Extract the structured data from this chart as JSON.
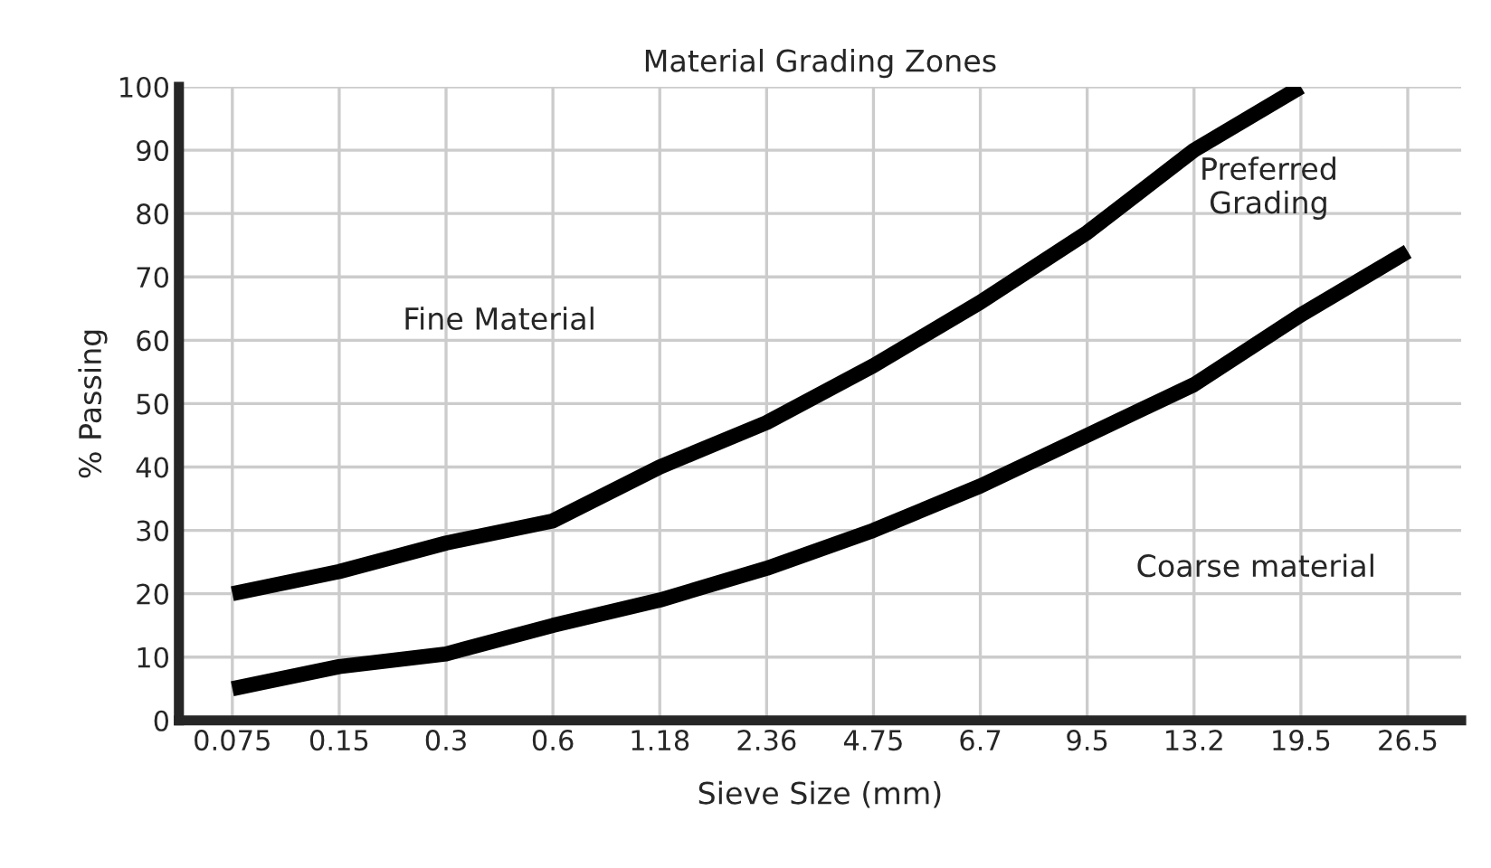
{
  "chart_data": {
    "type": "line",
    "title": "Material Grading Zones",
    "xlabel": "Sieve Size (mm)",
    "ylabel": "% Passing",
    "categories": [
      "0.075",
      "0.15",
      "0.3",
      "0.6",
      "1.18",
      "2.36",
      "4.75",
      "6.7",
      "9.5",
      "13.2",
      "19.5",
      "26.5"
    ],
    "series": [
      {
        "color": "#000000",
        "values": [
          20,
          23.5,
          28,
          31.5,
          40,
          47,
          56,
          66,
          77,
          90,
          100,
          null
        ]
      },
      {
        "color": "#000000",
        "values": [
          5,
          8.5,
          10.5,
          15,
          19,
          24,
          30,
          37,
          45,
          53,
          64,
          74
        ]
      }
    ],
    "ylim": [
      0,
      100
    ],
    "yticks": [
      0,
      10,
      20,
      30,
      40,
      50,
      60,
      70,
      80,
      90,
      100
    ],
    "grid": true,
    "legend": false,
    "marker": "none",
    "line_style": "solid",
    "annotations": [
      "Fine Material",
      "Preferred\nGrading",
      "Coarse material"
    ]
  }
}
